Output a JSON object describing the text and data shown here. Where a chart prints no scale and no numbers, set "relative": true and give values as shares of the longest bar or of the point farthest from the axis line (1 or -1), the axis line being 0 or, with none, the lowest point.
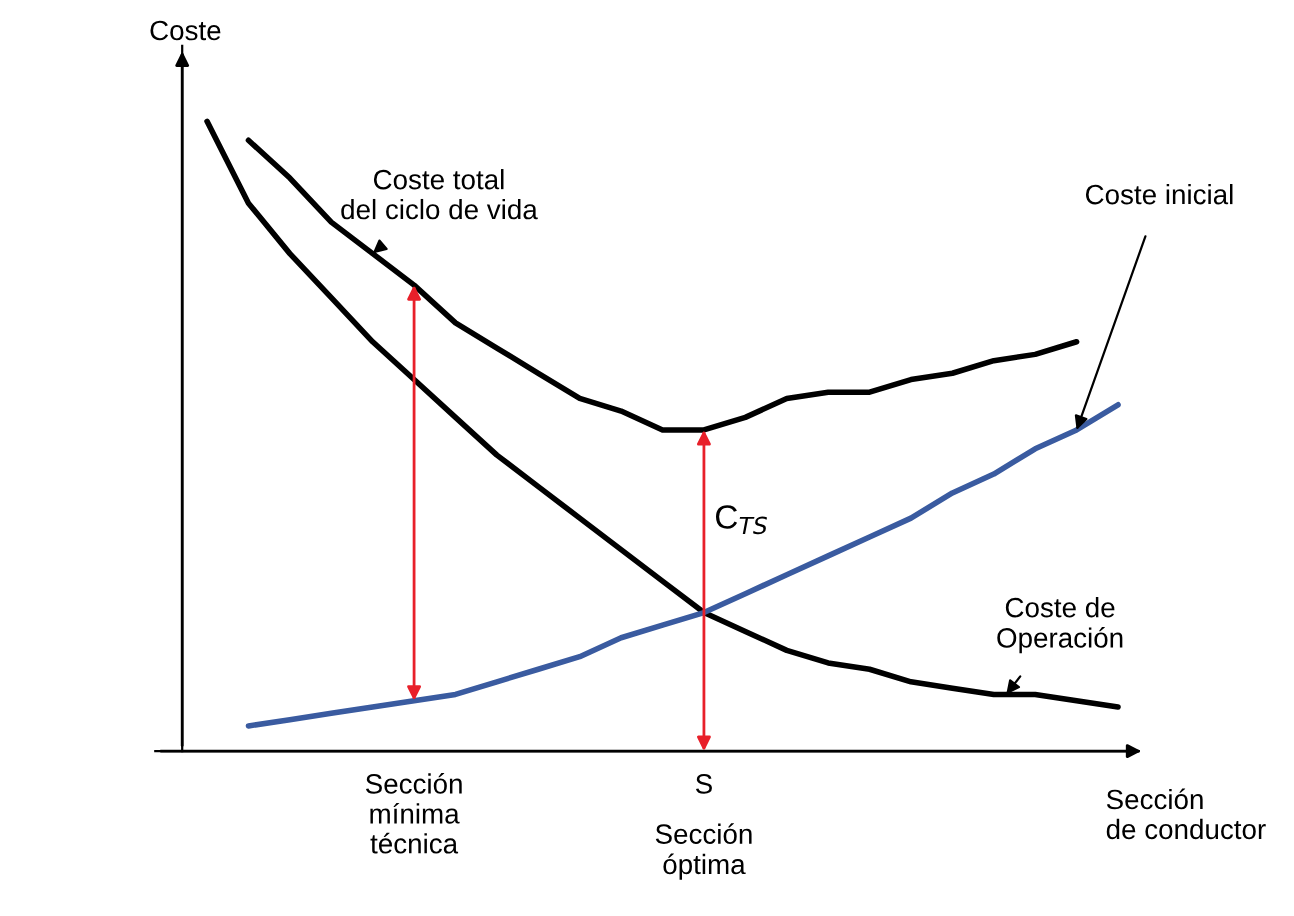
{
  "chart_data": {
    "type": "line",
    "relative": true,
    "ylabel": "Coste",
    "xlabel": "Sección\nde conductor",
    "categories": [
      null,
      null,
      null,
      null,
      null,
      "Sección\nmínima\ntécnica",
      null,
      null,
      null,
      null,
      null,
      null,
      "S",
      null,
      null,
      null,
      null,
      null,
      null,
      null,
      null,
      null,
      null
    ],
    "series": [
      {
        "name": "Coste de\nOperación",
        "color": "#000000",
        "values": [
          1.0,
          0.87,
          0.79,
          0.72,
          0.65,
          0.59,
          0.53,
          0.47,
          0.42,
          0.37,
          0.32,
          0.27,
          0.22,
          0.19,
          0.16,
          0.14,
          0.13,
          0.11,
          0.1,
          0.09,
          0.09,
          0.08,
          0.07
        ]
      },
      {
        "name": "Coste total\ndel ciclo de vida",
        "color": "#000000",
        "values": [
          null,
          0.97,
          0.91,
          0.84,
          0.79,
          0.74,
          0.68,
          0.64,
          0.6,
          0.56,
          0.54,
          0.51,
          0.51,
          0.53,
          0.56,
          0.57,
          0.57,
          0.59,
          0.6,
          0.62,
          0.63,
          0.65,
          null
        ]
      },
      {
        "name": "Coste inicial",
        "color": "#3a5ba0",
        "values": [
          null,
          0.04,
          0.05,
          0.06,
          0.07,
          0.08,
          0.09,
          0.11,
          0.13,
          0.15,
          0.18,
          0.2,
          0.22,
          0.25,
          0.28,
          0.31,
          0.34,
          0.37,
          0.41,
          0.44,
          0.48,
          0.51,
          0.55
        ]
      }
    ],
    "annotations": [
      "Sección\nóptima",
      "C$_{TS}$"
    ],
    "legend": false,
    "grid": false
  }
}
